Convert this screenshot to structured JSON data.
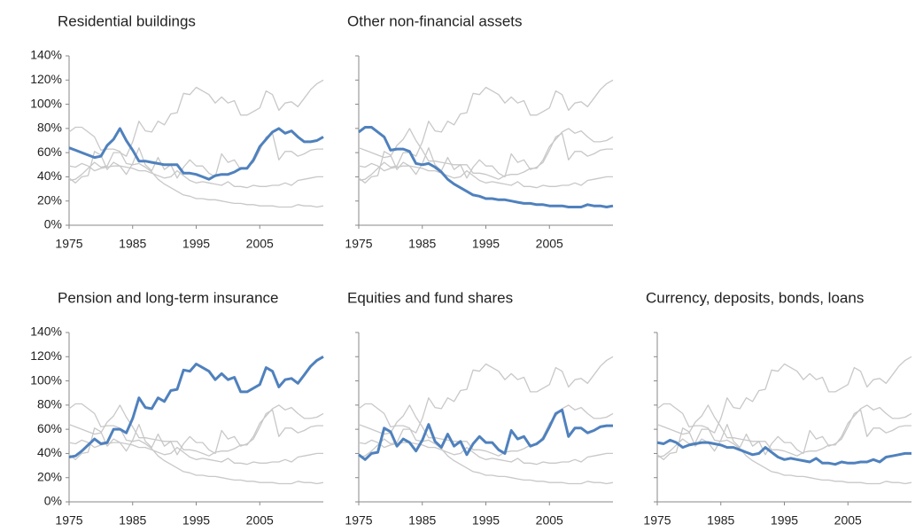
{
  "chart_data": {
    "type": "line",
    "x": [
      1975,
      1976,
      1977,
      1978,
      1979,
      1980,
      1981,
      1982,
      1983,
      1984,
      1985,
      1986,
      1987,
      1988,
      1989,
      1990,
      1991,
      1992,
      1993,
      1994,
      1995,
      1996,
      1997,
      1998,
      1999,
      2000,
      2001,
      2002,
      2003,
      2004,
      2005,
      2006,
      2007,
      2008,
      2009,
      2010,
      2011,
      2012,
      2013,
      2014,
      2015
    ],
    "xlim": [
      1975,
      2015
    ],
    "xticks": [
      1975,
      1985,
      1995,
      2005
    ],
    "ylim": [
      0,
      140
    ],
    "yticks": [
      {
        "value": 0,
        "label": "0%"
      },
      {
        "value": 20,
        "label": "20%"
      },
      {
        "value": 40,
        "label": "40%"
      },
      {
        "value": 60,
        "label": "60%"
      },
      {
        "value": 80,
        "label": "80%"
      },
      {
        "value": 100,
        "label": "100%"
      },
      {
        "value": 120,
        "label": "120%"
      },
      {
        "value": 140,
        "label": "140%"
      }
    ],
    "highlight_color": "#4f81bd",
    "context_color": "#c8c8c8",
    "series": [
      {
        "name": "Residential buildings",
        "values": [
          64,
          62,
          60,
          58,
          56,
          57,
          66,
          71,
          80,
          70,
          62,
          53,
          53,
          52,
          51,
          50,
          50,
          50,
          43,
          43,
          42,
          40,
          38,
          41,
          42,
          42,
          44,
          47,
          47,
          54,
          65,
          71,
          77,
          80,
          76,
          78,
          73,
          69,
          69,
          70,
          73
        ]
      },
      {
        "name": "Other non-financial assets",
        "values": [
          77,
          81,
          81,
          77,
          73,
          62,
          63,
          63,
          61,
          51,
          50,
          51,
          48,
          44,
          38,
          34,
          31,
          28,
          25,
          24,
          22,
          22,
          21,
          21,
          20,
          19,
          18,
          18,
          17,
          17,
          16,
          16,
          16,
          15,
          15,
          15,
          17,
          16,
          16,
          15,
          16
        ]
      },
      {
        "name": "Pension and long-term insurance",
        "values": [
          37,
          38,
          42,
          47,
          52,
          48,
          49,
          60,
          60,
          57,
          69,
          86,
          78,
          77,
          86,
          83,
          92,
          93,
          109,
          108,
          114,
          111,
          108,
          101,
          106,
          101,
          103,
          91,
          91,
          94,
          97,
          111,
          108,
          95,
          101,
          102,
          98,
          105,
          112,
          117,
          120
        ]
      },
      {
        "name": "Equities and fund shares",
        "values": [
          39,
          35,
          40,
          41,
          61,
          58,
          46,
          52,
          49,
          42,
          51,
          64,
          50,
          45,
          56,
          46,
          50,
          39,
          48,
          54,
          49,
          49,
          43,
          40,
          59,
          52,
          54,
          46,
          48,
          52,
          62,
          73,
          76,
          54,
          61,
          61,
          57,
          59,
          62,
          63,
          63
        ]
      },
      {
        "name": "Currency, deposits, bonds, loans",
        "values": [
          49,
          48,
          51,
          49,
          45,
          47,
          48,
          49,
          49,
          48,
          47,
          45,
          45,
          43,
          41,
          39,
          40,
          45,
          41,
          37,
          35,
          36,
          35,
          34,
          33,
          36,
          32,
          32,
          31,
          33,
          32,
          32,
          33,
          33,
          35,
          33,
          37,
          38,
          39,
          40,
          40
        ]
      }
    ]
  }
}
